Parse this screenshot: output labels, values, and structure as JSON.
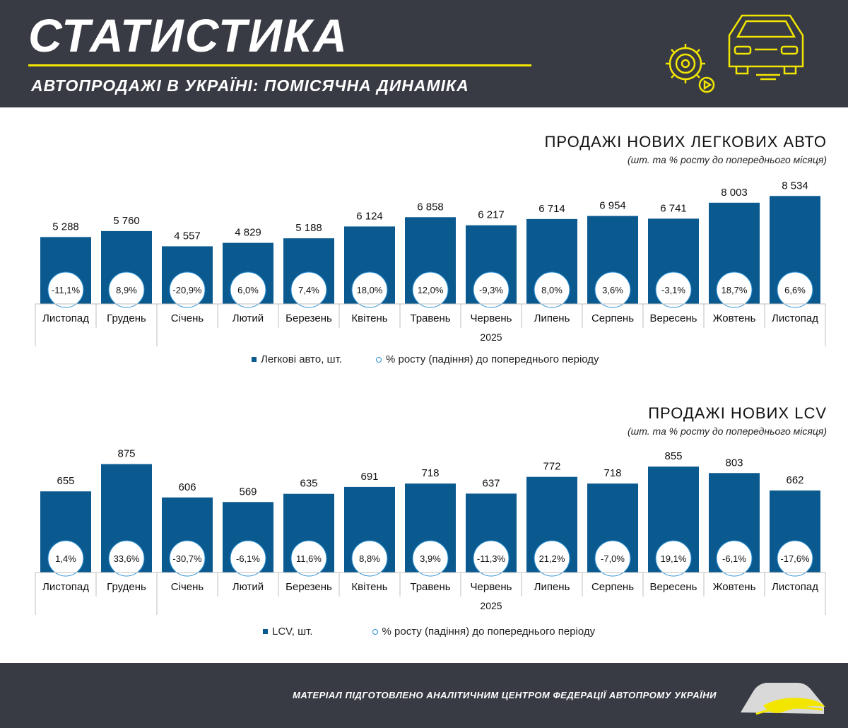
{
  "header": {
    "title": "СТАТИСТИКА",
    "subtitle": "АВТОПРОДАЖІ В УКРАЇНІ: ПОМІСЯЧНА ДИНАМІКА"
  },
  "colors": {
    "bar": "#0b5a8f",
    "accent": "#f2e600",
    "dark_bg": "#393b44",
    "growth_ring": "#2a8fd3"
  },
  "chart_data": [
    {
      "type": "bar",
      "title": "ПРОДАЖІ НОВИХ ЛЕГКОВИХ АВТО",
      "subtitle": "(шт. та % росту до попереднього місяця)",
      "categories": [
        "Листопад",
        "Грудень",
        "Січень",
        "Лютий",
        "Березень",
        "Квітень",
        "Травень",
        "Червень",
        "Липень",
        "Серпень",
        "Вересень",
        "Жовтень",
        "Листопад"
      ],
      "year_label": "2025",
      "series": [
        {
          "name": "Легкові авто, шт.",
          "values": [
            5288,
            5760,
            4557,
            4829,
            5188,
            6124,
            6858,
            6217,
            6714,
            6954,
            6741,
            8003,
            8534
          ],
          "labels": [
            "5 288",
            "5 760",
            "4 557",
            "4 829",
            "5 188",
            "6 124",
            "6 858",
            "6 217",
            "6 714",
            "6 954",
            "6 741",
            "8 003",
            "8 534"
          ]
        },
        {
          "name": "% росту  (падіння) до попереднього періоду",
          "values": [
            -11.1,
            8.9,
            -20.9,
            6.0,
            7.4,
            18.0,
            12.0,
            -9.3,
            8.0,
            3.6,
            -3.1,
            18.7,
            6.6
          ],
          "labels": [
            "-11,1%",
            "8,9%",
            "-20,9%",
            "6,0%",
            "7,4%",
            "18,0%",
            "12,0%",
            "-9,3%",
            "8,0%",
            "3,6%",
            "-3,1%",
            "18,7%",
            "6,6%"
          ]
        }
      ],
      "ylim": [
        0,
        9500
      ]
    },
    {
      "type": "bar",
      "title": "ПРОДАЖІ НОВИХ  LCV",
      "subtitle": "(шт. та % росту до попереднього місяця)",
      "categories": [
        "Листопад",
        "Грудень",
        "Січень",
        "Лютий",
        "Березень",
        "Квітень",
        "Травень",
        "Червень",
        "Липень",
        "Серпень",
        "Вересень",
        "Жовтень",
        "Листопад"
      ],
      "year_label": "2025",
      "series": [
        {
          "name": "LCV, шт.",
          "values": [
            655,
            875,
            606,
            569,
            635,
            691,
            718,
            637,
            772,
            718,
            855,
            803,
            662
          ],
          "labels": [
            "655",
            "875",
            "606",
            "569",
            "635",
            "691",
            "718",
            "637",
            "772",
            "718",
            "855",
            "803",
            "662"
          ]
        },
        {
          "name": "% росту  (падіння) до попереднього періоду",
          "values": [
            1.4,
            33.6,
            -30.7,
            -6.1,
            11.6,
            8.8,
            3.9,
            -11.3,
            21.2,
            -7.0,
            19.1,
            -6.1,
            -17.6
          ],
          "labels": [
            "1,4%",
            "33,6%",
            "-30,7%",
            "-6,1%",
            "11,6%",
            "8,8%",
            "3,9%",
            "-11,3%",
            "21,2%",
            "-7,0%",
            "19,1%",
            "-6,1%",
            "-17,6%"
          ]
        }
      ],
      "ylim": [
        0,
        970
      ]
    }
  ],
  "footer": {
    "credit": "МАТЕРІАЛ ПІДГОТОВЛЕНО АНАЛІТИЧНИМ ЦЕНТРОМ ФЕДЕРАЦІЇ АВТОПРОМУ УКРАЇНИ"
  }
}
